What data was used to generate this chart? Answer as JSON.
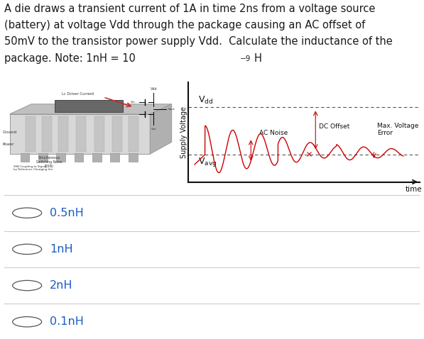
{
  "question_lines": [
    "A die draws a transient current of 1A in time 2ns from a voltage source",
    "(battery) at voltage Vdd through the package causing an AC offset of",
    "50mV to the transistor power supply Vdd.  Calculate the inductance of the",
    "package. Note: 1nH = 10"
  ],
  "options": [
    "0.5nH",
    "1nH",
    "2nH",
    "0.1nH"
  ],
  "bg_color": "#ffffff",
  "text_color": "#1a1a1a",
  "option_color": "#1a5bc4",
  "graph_line_color": "#cc0000",
  "annotation_color": "#cc0000",
  "axis_color": "#333333",
  "vdd_level": 0.85,
  "vavg_level": 0.28,
  "graph_xlim": [
    -0.3,
    10.8
  ],
  "graph_ylim": [
    -0.05,
    1.15
  ],
  "ylabel": "Supply Voltage",
  "xlabel": "time",
  "vdd_label": "V$_\\mathregular{dd}$",
  "vavg_label": "V$_\\mathregular{avg}$",
  "ac_noise_label": "AC Noise",
  "dc_offset_label": "DC Offset",
  "max_voltage_label": "Max. Voltage\nError",
  "separator_color": "#cccccc",
  "radio_color": "#555555",
  "question_fontsize": 10.5,
  "option_fontsize": 11.5
}
